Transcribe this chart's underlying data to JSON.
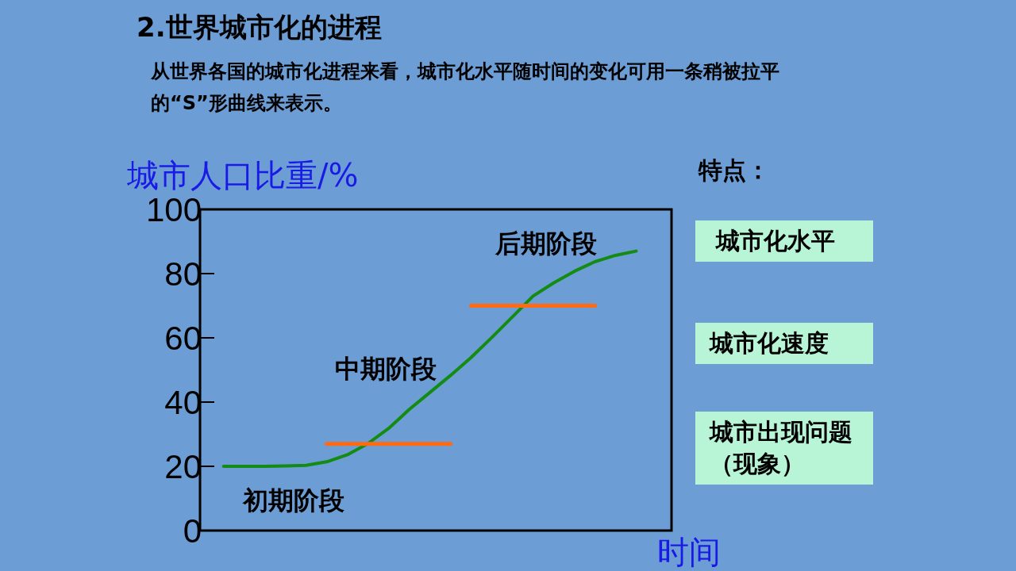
{
  "chart_data": {
    "type": "line",
    "title": "2.世界城市化的进程",
    "subtitle": "从世界各国的城市化进程来看，城市化水平随时间的变化可用一条稍被拉平的“S”形曲线来表示。",
    "ylabel": "城市人口比重/%",
    "xlabel": "时间",
    "categories": [
      null,
      null,
      null,
      null,
      null,
      null,
      null,
      null,
      null,
      null,
      null,
      null,
      null,
      null,
      null,
      null,
      null,
      null,
      null,
      null,
      null
    ],
    "ylim": [
      0,
      100
    ],
    "yticks": [
      0,
      20,
      40,
      60,
      80,
      100
    ],
    "tick_labels": "y",
    "series": [
      {
        "color": "#148c14",
        "values": [
          20,
          20,
          20,
          20.1,
          20.3,
          21.4,
          23.6,
          27.1,
          31.8,
          37.7,
          43.0,
          48.3,
          53.9,
          60.1,
          66.5,
          73.0,
          77.1,
          80.7,
          83.7,
          85.7,
          87
        ]
      },
      {
        "color": "#ff6a13",
        "values": [
          null,
          null,
          null,
          null,
          null,
          27,
          27,
          27,
          27,
          27,
          27,
          27,
          null,
          null,
          null,
          null,
          null,
          null,
          null,
          null,
          null
        ]
      },
      {
        "color": "#ff6a13",
        "values": [
          null,
          null,
          null,
          null,
          null,
          null,
          null,
          null,
          null,
          null,
          null,
          null,
          70,
          70,
          70,
          70,
          70,
          70,
          70,
          null,
          null
        ]
      }
    ],
    "annotations": [
      "初期阶段",
      "中期阶段",
      "后期阶段",
      "特点：",
      "城市化水平",
      "城市化速度",
      "城市出现问题（现象）"
    ]
  }
}
